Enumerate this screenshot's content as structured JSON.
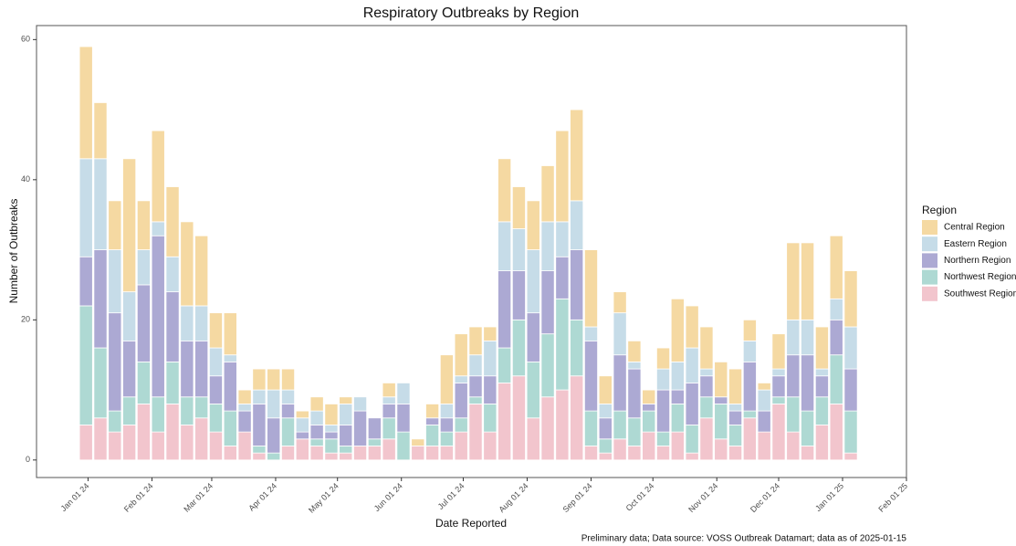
{
  "chart_data": {
    "type": "stacked-bar",
    "title": "Respiratory Outbreaks by Region",
    "x_label": "Date Reported",
    "y_label": "Number of Outbreaks",
    "legend_title": "Region",
    "caption": "Preliminary data; Data source: VOSS Outbreak Datamart; data as of 2025-01-15",
    "legend": "right",
    "grid": false,
    "x": [
      "2023-12-31",
      "2024-01-07",
      "2024-01-14",
      "2024-01-21",
      "2024-01-28",
      "2024-02-04",
      "2024-02-11",
      "2024-02-18",
      "2024-02-25",
      "2024-03-03",
      "2024-03-10",
      "2024-03-17",
      "2024-03-24",
      "2024-03-31",
      "2024-04-07",
      "2024-04-14",
      "2024-04-21",
      "2024-04-28",
      "2024-05-05",
      "2024-05-12",
      "2024-05-19",
      "2024-05-26",
      "2024-06-02",
      "2024-06-09",
      "2024-06-16",
      "2024-06-23",
      "2024-06-30",
      "2024-07-07",
      "2024-07-14",
      "2024-07-21",
      "2024-07-28",
      "2024-08-04",
      "2024-08-11",
      "2024-08-18",
      "2024-08-25",
      "2024-09-01",
      "2024-09-08",
      "2024-09-15",
      "2024-09-22",
      "2024-09-29",
      "2024-10-06",
      "2024-10-13",
      "2024-10-20",
      "2024-10-27",
      "2024-11-03",
      "2024-11-10",
      "2024-11-17",
      "2024-11-24",
      "2024-12-01",
      "2024-12-08",
      "2024-12-15",
      "2024-12-22",
      "2024-12-29",
      "2025-01-05"
    ],
    "series": [
      {
        "name": "Central Region",
        "color": "#f5d9a2",
        "values": [
          16,
          8,
          7,
          19,
          7,
          13,
          10,
          12,
          10,
          5,
          6,
          2,
          3,
          3,
          3,
          1,
          2,
          3,
          1,
          0,
          0,
          2,
          0,
          1,
          2,
          7,
          6,
          4,
          2,
          9,
          6,
          7,
          8,
          13,
          13,
          11,
          4,
          3,
          3,
          2,
          3,
          9,
          6,
          6,
          5,
          5,
          3,
          1,
          5,
          11,
          11,
          6,
          9,
          8
        ]
      },
      {
        "name": "Eastern Region",
        "color": "#c6dce8",
        "values": [
          14,
          13,
          9,
          7,
          5,
          2,
          5,
          5,
          5,
          4,
          1,
          1,
          2,
          4,
          2,
          2,
          2,
          1,
          3,
          2,
          0,
          1,
          3,
          0,
          0,
          2,
          1,
          3,
          5,
          7,
          6,
          9,
          7,
          5,
          7,
          2,
          2,
          6,
          1,
          0,
          3,
          4,
          5,
          1,
          0,
          1,
          3,
          3,
          1,
          5,
          5,
          1,
          3,
          6
        ]
      },
      {
        "name": "Northern Region",
        "color": "#aca9d3",
        "values": [
          7,
          14,
          14,
          8,
          11,
          23,
          10,
          8,
          8,
          4,
          7,
          3,
          6,
          5,
          2,
          1,
          2,
          1,
          3,
          5,
          3,
          2,
          4,
          0,
          1,
          2,
          5,
          3,
          4,
          11,
          7,
          7,
          9,
          6,
          10,
          10,
          3,
          8,
          7,
          1,
          6,
          2,
          6,
          3,
          1,
          2,
          7,
          3,
          3,
          6,
          8,
          3,
          5,
          6
        ]
      },
      {
        "name": "Northwest Region",
        "color": "#aed9d3",
        "values": [
          17,
          10,
          3,
          4,
          6,
          5,
          6,
          4,
          3,
          4,
          5,
          0,
          1,
          1,
          4,
          0,
          1,
          2,
          1,
          0,
          1,
          3,
          4,
          0,
          3,
          2,
          2,
          1,
          4,
          5,
          8,
          8,
          9,
          13,
          8,
          5,
          2,
          4,
          4,
          3,
          2,
          4,
          4,
          3,
          5,
          3,
          1,
          0,
          1,
          5,
          5,
          4,
          7,
          6
        ]
      },
      {
        "name": "Southwest Region",
        "color": "#f2c5cd",
        "values": [
          5,
          6,
          4,
          5,
          8,
          4,
          8,
          5,
          6,
          4,
          2,
          4,
          1,
          0,
          2,
          3,
          2,
          1,
          1,
          2,
          2,
          3,
          0,
          2,
          2,
          2,
          4,
          8,
          4,
          11,
          12,
          6,
          9,
          10,
          12,
          2,
          1,
          3,
          2,
          4,
          2,
          4,
          1,
          6,
          3,
          2,
          6,
          4,
          8,
          4,
          2,
          5,
          8,
          1
        ]
      }
    ],
    "xlim": [
      "2023-12-07",
      "2025-02-01"
    ],
    "xticks": [
      {
        "value": "2024-01-01",
        "label": "Jan 01 24"
      },
      {
        "value": "2024-02-01",
        "label": "Feb 01 24"
      },
      {
        "value": "2024-03-01",
        "label": "Mar 01 24"
      },
      {
        "value": "2024-04-01",
        "label": "Apr 01 24"
      },
      {
        "value": "2024-05-01",
        "label": "May 01 24"
      },
      {
        "value": "2024-06-01",
        "label": "Jun 01 24"
      },
      {
        "value": "2024-07-01",
        "label": "Jul 01 24"
      },
      {
        "value": "2024-08-01",
        "label": "Aug 01 24"
      },
      {
        "value": "2024-09-01",
        "label": "Sep 01 24"
      },
      {
        "value": "2024-10-01",
        "label": "Oct 01 24"
      },
      {
        "value": "2024-11-01",
        "label": "Nov 01 24"
      },
      {
        "value": "2024-12-01",
        "label": "Dec 01 24"
      },
      {
        "value": "2025-01-01",
        "label": "Jan 01 25"
      },
      {
        "value": "2025-02-01",
        "label": "Feb 01 25"
      }
    ],
    "ylim": [
      -2.5,
      62
    ],
    "yticks": [
      0,
      20,
      40,
      60
    ]
  }
}
